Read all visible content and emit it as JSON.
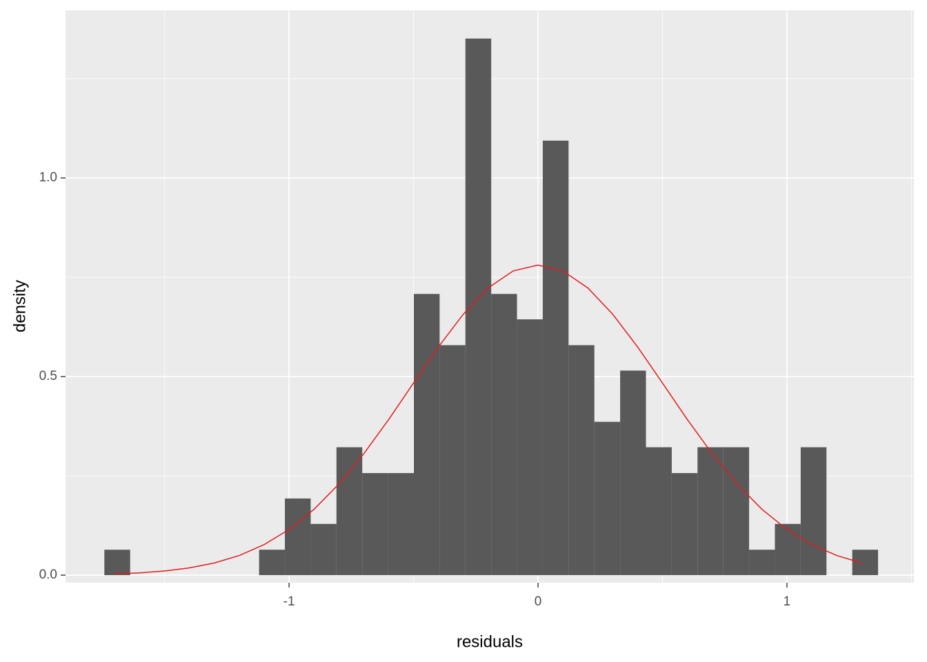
{
  "chart_data": {
    "type": "histogram",
    "x_label": "residuals",
    "y_label": "density",
    "bins": [
      -1.742,
      -1.6384,
      -1.5348,
      -1.4312,
      -1.3276,
      -1.224,
      -1.1204,
      -1.0168,
      -0.9132,
      -0.8096,
      -0.706,
      -0.6024,
      -0.4988,
      -0.3952,
      -0.2916,
      -0.188,
      -0.0844,
      0.0192,
      0.1228,
      0.2264,
      0.33,
      0.4336,
      0.5372,
      0.6408,
      0.7444,
      0.848,
      0.9516,
      1.0552,
      1.1588,
      1.2624,
      1.366
    ],
    "values": [
      0.064,
      0,
      0,
      0,
      0,
      0,
      0.064,
      0.193,
      0.129,
      0.322,
      0.257,
      0.257,
      0.708,
      0.579,
      1.351,
      0.708,
      0.644,
      1.094,
      0.579,
      0.386,
      0.515,
      0.322,
      0.257,
      0.322,
      0.322,
      0.064,
      0.129,
      0.322,
      0,
      0.064
    ],
    "color": "#595959",
    "density_curve": {
      "color": "#e31a1c",
      "x": [
        -1.7,
        -1.6,
        -1.5,
        -1.4,
        -1.3,
        -1.2,
        -1.1,
        -1.0,
        -0.9,
        -0.8,
        -0.7,
        -0.6,
        -0.5,
        -0.4,
        -0.3,
        -0.2,
        -0.1,
        0,
        0.1,
        0.2,
        0.3,
        0.4,
        0.5,
        0.6,
        0.7,
        0.8,
        0.9,
        1.0,
        1.1,
        1.2,
        1.3
      ],
      "values": [
        0.0031,
        0.0058,
        0.0105,
        0.0183,
        0.0307,
        0.0495,
        0.077,
        0.1151,
        0.1656,
        0.2292,
        0.3055,
        0.3918,
        0.4837,
        0.5747,
        0.6571,
        0.7232,
        0.7659,
        0.7807,
        0.7659,
        0.7232,
        0.6571,
        0.5747,
        0.4837,
        0.3918,
        0.3055,
        0.2292,
        0.1656,
        0.1151,
        0.077,
        0.0495,
        0.0307
      ]
    },
    "xlim": [
      -1.898,
      1.51
    ],
    "ylim": [
      -0.019,
      1.422
    ],
    "xticks": [
      -1,
      0,
      1
    ],
    "yticks": [
      {
        "value": 0,
        "label": "0.0"
      },
      {
        "value": 0.5,
        "label": "0.5"
      },
      {
        "value": 1.0,
        "label": "1.0"
      }
    ],
    "x_minor_ticks": [
      -1.5,
      -0.5,
      0.5,
      1.5
    ],
    "y_minor_ticks": [
      0.25,
      0.75,
      1.25
    ],
    "grid": true
  }
}
